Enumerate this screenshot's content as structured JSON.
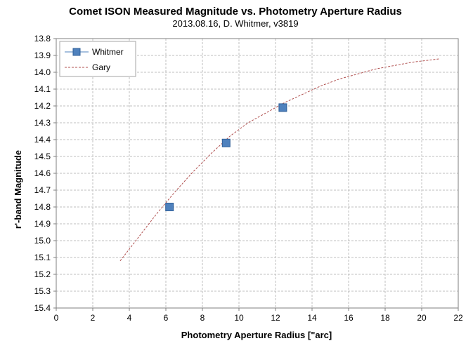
{
  "chart_data": {
    "type": "scatter",
    "title": "Comet ISON Measured Magnitude vs. Photometry Aperture Radius",
    "subtitle": "2013.08.16,  D. Whitmer, v3819",
    "xlabel": "Photometry Aperture Radius [\"arc]",
    "ylabel": "r'-band Magnitude",
    "xlim": [
      0,
      22
    ],
    "ylim": [
      15.4,
      13.8
    ],
    "y_inverted": true,
    "x_ticks": [
      "0",
      "2",
      "4",
      "6",
      "8",
      "10",
      "12",
      "14",
      "16",
      "18",
      "20",
      "22"
    ],
    "y_ticks": [
      "13.8",
      "13.9",
      "14.0",
      "14.1",
      "14.2",
      "14.3",
      "14.4",
      "14.5",
      "14.6",
      "14.7",
      "14.8",
      "14.9",
      "15.0",
      "15.1",
      "15.2",
      "15.3",
      "15.4"
    ],
    "grid": true,
    "legend_position": "top-left",
    "series": [
      {
        "name": "Whitmer",
        "kind": "markers",
        "marker": "square",
        "color": "#4f81bd",
        "x": [
          6.2,
          9.3,
          12.4
        ],
        "y": [
          14.8,
          14.42,
          14.21
        ]
      },
      {
        "name": "Gary",
        "kind": "dashed-line",
        "color": "#b0504f",
        "x": [
          3.5,
          4.5,
          5.5,
          6.5,
          7.5,
          8.5,
          9.5,
          10.5,
          11.5,
          12.5,
          13.5,
          14.5,
          15.5,
          16.5,
          17.5,
          18.5,
          19.5,
          21.0
        ],
        "y": [
          15.12,
          14.98,
          14.84,
          14.71,
          14.59,
          14.48,
          14.38,
          14.3,
          14.24,
          14.18,
          14.13,
          14.08,
          14.04,
          14.01,
          13.98,
          13.96,
          13.94,
          13.92
        ]
      }
    ]
  }
}
